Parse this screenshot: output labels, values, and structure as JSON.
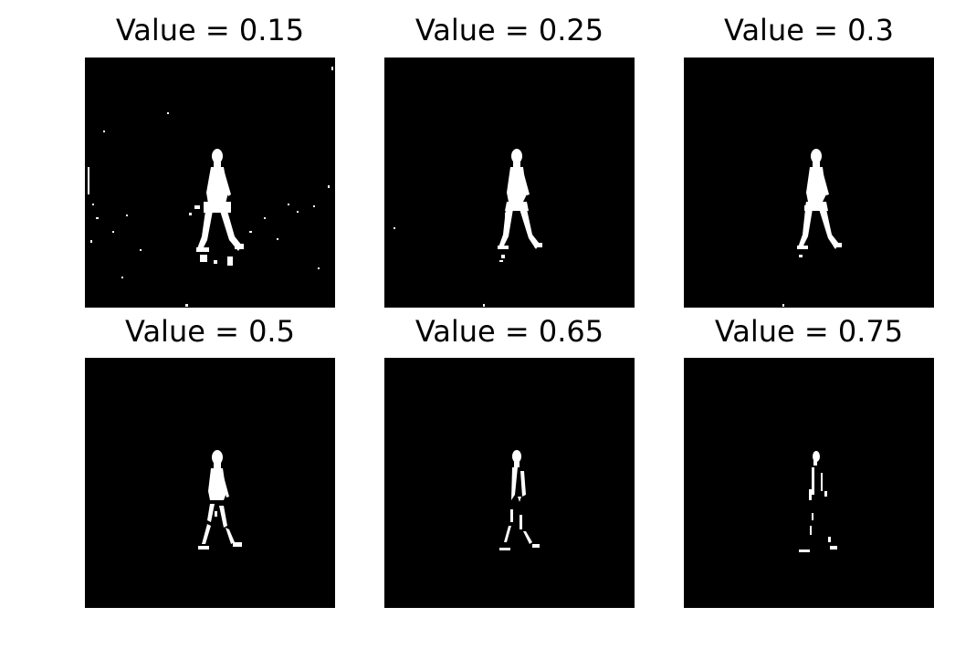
{
  "panels": [
    {
      "title": "Value = 0.15"
    },
    {
      "title": "Value = 0.25"
    },
    {
      "title": "Value = 0.3"
    },
    {
      "title": "Value = 0.5"
    },
    {
      "title": "Value = 0.65"
    },
    {
      "title": "Value = 0.75"
    }
  ],
  "colors": {
    "background": "#ffffff",
    "image_background": "#000000",
    "foreground": "#ffffff"
  }
}
